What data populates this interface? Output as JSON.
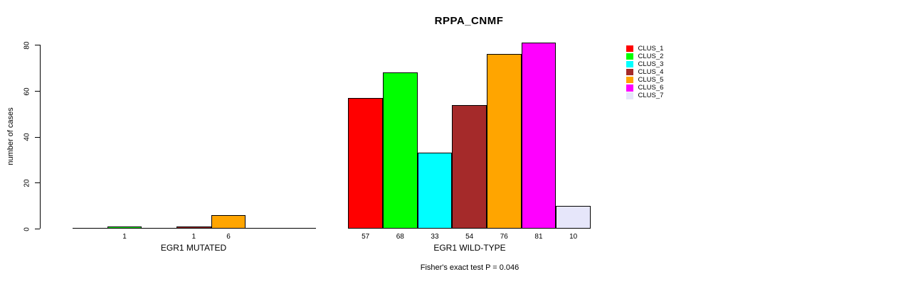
{
  "chart_data": {
    "type": "bar",
    "title": "RPPA_CNMF",
    "ylabel": "number of cases",
    "ylim": [
      0,
      80
    ],
    "yticks": [
      0,
      20,
      40,
      60,
      80
    ],
    "grid": false,
    "categories": [
      "CLUS_1",
      "CLUS_2",
      "CLUS_3",
      "CLUS_4",
      "CLUS_5",
      "CLUS_6",
      "CLUS_7"
    ],
    "colors": [
      "#FF0000",
      "#00FF00",
      "#00FFFF",
      "#A52A2A",
      "#FFA500",
      "#FF00FF",
      "#E6E6FA"
    ],
    "groups": [
      {
        "label": "EGR1 MUTATED",
        "values": [
          0,
          1,
          0,
          1,
          6,
          0,
          0
        ]
      },
      {
        "label": "EGR1 WILD-TYPE",
        "values": [
          57,
          68,
          33,
          54,
          76,
          81,
          10
        ]
      }
    ],
    "value_labels": "shown under bars with nonzero values",
    "legend": {
      "position": "right",
      "entries": [
        "CLUS_1",
        "CLUS_2",
        "CLUS_3",
        "CLUS_4",
        "CLUS_5",
        "CLUS_6",
        "CLUS_7"
      ]
    },
    "annotation": "Fisher's exact test P = 0.046"
  }
}
